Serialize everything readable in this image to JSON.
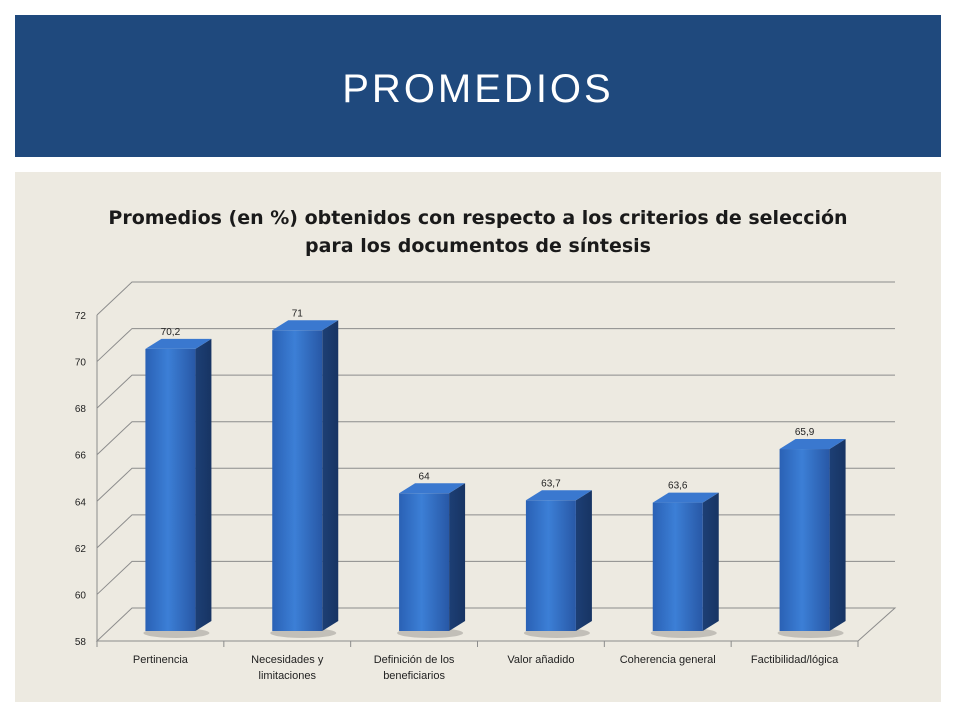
{
  "slide": {
    "title": "PROMEDIOS"
  },
  "colors": {
    "header_bg": "#1f497d",
    "panel_bg": "#edeae1",
    "bar_front": "#2f6cc4",
    "bar_side": "#1c3f73",
    "bar_top": "#3c7dd0"
  },
  "chart_data": {
    "type": "bar",
    "title_lines": [
      "Promedios (en %) obtenidos con respecto a los criterios de selección",
      "para los documentos de síntesis"
    ],
    "categories": [
      [
        "Pertinencia"
      ],
      [
        "Necesidades y",
        "limitaciones"
      ],
      [
        "Definición de los",
        "beneficiarios"
      ],
      [
        "Valor añadido"
      ],
      [
        "Coherencia general"
      ],
      [
        "Factibilidad/lógica"
      ]
    ],
    "values": [
      70.2,
      71,
      64,
      63.7,
      63.6,
      65.9
    ],
    "value_labels": [
      "70,2",
      "71",
      "64",
      "63,7",
      "63,6",
      "65,9"
    ],
    "ylim": [
      58,
      72
    ],
    "yticks": [
      58,
      60,
      62,
      64,
      66,
      68,
      70,
      72
    ],
    "grid": true,
    "style": "3d-bar"
  }
}
